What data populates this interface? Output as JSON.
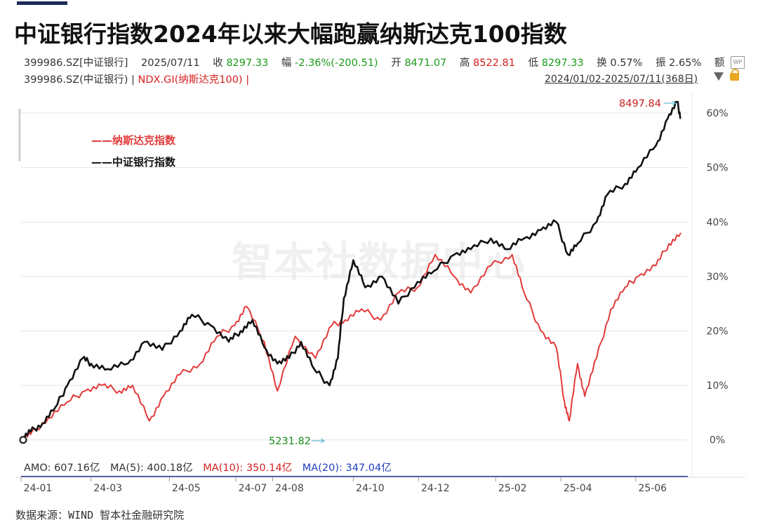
{
  "title": "中证银行指数2024年以来大幅跑赢纳斯达克100指数",
  "quote": {
    "code": "399986.SZ[中证银行]",
    "date": "2025/07/11",
    "close_label": "收",
    "close": "8297.33",
    "change_label": "幅",
    "change": "-2.36%(-200.51)",
    "open_label": "开",
    "open": "8471.07",
    "high_label": "高",
    "high": "8522.81",
    "low_label": "低",
    "low": "8297.33",
    "turnover_label": "换",
    "turnover": "0.57%",
    "amp_label": "振",
    "amp": "2.65%",
    "amount_label": "额"
  },
  "series_line": {
    "s1": "399986.SZ(中证银行) |",
    "s2": "NDX.GI(纳斯达克100) |"
  },
  "range": "2024/01/02-2025/07/11(368日)",
  "watermark": "智本社数据中心",
  "legend": {
    "nasdaq": "——纳斯达克指数",
    "bank": "——中证银行指数"
  },
  "annotations": {
    "max": "8497.84",
    "min": "5231.82"
  },
  "amo": {
    "amo": "AMO: 607.16亿",
    "ma5": "MA(5): 400.18亿",
    "ma10": "MA(10): 350.14亿",
    "ma20": "MA(20): 347.04亿"
  },
  "source": "数据来源：WIND 智本社金融研究院",
  "colors": {
    "bank": "#111111",
    "nasdaq": "#e23a3a",
    "grid": "#e4e4e4"
  },
  "chart_data": {
    "type": "line",
    "ylim": [
      -3,
      64
    ],
    "y_ticks": [
      0,
      10,
      20,
      30,
      40,
      50,
      60
    ],
    "y_tick_labels": [
      "0%",
      "10%",
      "20%",
      "30%",
      "40%",
      "50%",
      "60%"
    ],
    "x_range": [
      "2024-01-02",
      "2025-07-11"
    ],
    "x_ticks": [
      {
        "date": "2024-01-02",
        "label": "24-01"
      },
      {
        "date": "2024-03-01",
        "label": "24-03"
      },
      {
        "date": "2024-05-06",
        "label": "24-05"
      },
      {
        "date": "2024-07-01",
        "label": "24-07"
      },
      {
        "date": "2024-08-01",
        "label": "24-08"
      },
      {
        "date": "2024-10-08",
        "label": "24-10"
      },
      {
        "date": "2024-12-02",
        "label": "24-12"
      },
      {
        "date": "2025-02-05",
        "label": "25-02"
      },
      {
        "date": "2025-04-01",
        "label": "25-04"
      },
      {
        "date": "2025-06-03",
        "label": "25-06"
      }
    ],
    "series": [
      {
        "name": "中证银行指数",
        "key": "bank",
        "points": [
          [
            "2024-01-02",
            0
          ],
          [
            "2024-01-10",
            1.5
          ],
          [
            "2024-01-20",
            3
          ],
          [
            "2024-01-31",
            6
          ],
          [
            "2024-02-10",
            10
          ],
          [
            "2024-02-23",
            15
          ],
          [
            "2024-03-01",
            14
          ],
          [
            "2024-03-15",
            13
          ],
          [
            "2024-04-01",
            14
          ],
          [
            "2024-04-15",
            18
          ],
          [
            "2024-04-30",
            16.5
          ],
          [
            "2024-05-15",
            20
          ],
          [
            "2024-05-25",
            23
          ],
          [
            "2024-06-10",
            21
          ],
          [
            "2024-06-25",
            18
          ],
          [
            "2024-07-05",
            20
          ],
          [
            "2024-07-15",
            22
          ],
          [
            "2024-07-25",
            17
          ],
          [
            "2024-08-05",
            14
          ],
          [
            "2024-08-15",
            15
          ],
          [
            "2024-08-25",
            18
          ],
          [
            "2024-09-05",
            13
          ],
          [
            "2024-09-18",
            10
          ],
          [
            "2024-09-25",
            15
          ],
          [
            "2024-09-30",
            26
          ],
          [
            "2024-10-08",
            33
          ],
          [
            "2024-10-18",
            28
          ],
          [
            "2024-11-01",
            30
          ],
          [
            "2024-11-15",
            25
          ],
          [
            "2024-12-01",
            29
          ],
          [
            "2024-12-15",
            31
          ],
          [
            "2025-01-01",
            34
          ],
          [
            "2025-01-15",
            35
          ],
          [
            "2025-02-01",
            37
          ],
          [
            "2025-02-15",
            35
          ],
          [
            "2025-03-01",
            37
          ],
          [
            "2025-03-15",
            38.5
          ],
          [
            "2025-03-28",
            40
          ],
          [
            "2025-04-07",
            34
          ],
          [
            "2025-04-15",
            36
          ],
          [
            "2025-05-01",
            40
          ],
          [
            "2025-05-10",
            45
          ],
          [
            "2025-05-25",
            47
          ],
          [
            "2025-06-05",
            50
          ],
          [
            "2025-06-20",
            54
          ],
          [
            "2025-06-30",
            59
          ],
          [
            "2025-07-08",
            62
          ],
          [
            "2025-07-11",
            59
          ]
        ]
      },
      {
        "name": "纳斯达克指数",
        "key": "nasdaq",
        "points": [
          [
            "2024-01-02",
            0
          ],
          [
            "2024-01-10",
            1
          ],
          [
            "2024-01-25",
            4
          ],
          [
            "2024-02-10",
            7
          ],
          [
            "2024-02-25",
            9
          ],
          [
            "2024-03-10",
            10
          ],
          [
            "2024-03-25",
            9
          ],
          [
            "2024-04-05",
            10
          ],
          [
            "2024-04-19",
            3.5
          ],
          [
            "2024-05-01",
            8
          ],
          [
            "2024-05-15",
            12
          ],
          [
            "2024-06-01",
            14
          ],
          [
            "2024-06-15",
            19
          ],
          [
            "2024-06-30",
            21
          ],
          [
            "2024-07-10",
            24.5
          ],
          [
            "2024-07-25",
            18
          ],
          [
            "2024-08-05",
            9
          ],
          [
            "2024-08-20",
            19
          ],
          [
            "2024-09-06",
            15
          ],
          [
            "2024-09-20",
            21
          ],
          [
            "2024-10-01",
            22
          ],
          [
            "2024-10-15",
            24
          ],
          [
            "2024-10-31",
            22
          ],
          [
            "2024-11-15",
            27
          ],
          [
            "2024-12-01",
            28
          ],
          [
            "2024-12-16",
            34
          ],
          [
            "2025-01-01",
            30
          ],
          [
            "2025-01-15",
            27
          ],
          [
            "2025-02-01",
            32
          ],
          [
            "2025-02-19",
            34
          ],
          [
            "2025-03-01",
            27
          ],
          [
            "2025-03-15",
            20
          ],
          [
            "2025-03-28",
            17
          ],
          [
            "2025-04-04",
            7
          ],
          [
            "2025-04-08",
            3.5
          ],
          [
            "2025-04-15",
            14
          ],
          [
            "2025-04-21",
            8
          ],
          [
            "2025-05-01",
            15
          ],
          [
            "2025-05-13",
            24
          ],
          [
            "2025-05-25",
            28
          ],
          [
            "2025-06-05",
            30
          ],
          [
            "2025-06-20",
            32
          ],
          [
            "2025-07-01",
            36
          ],
          [
            "2025-07-11",
            38
          ]
        ]
      }
    ]
  }
}
